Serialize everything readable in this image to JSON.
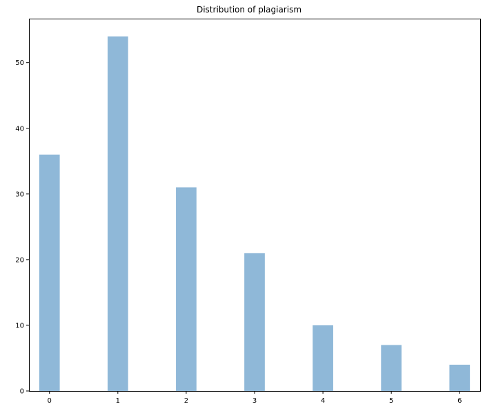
{
  "chart_data": {
    "type": "bar",
    "title": "Distribution of plagiarism",
    "xlabel": "",
    "ylabel": "",
    "x": [
      0,
      1,
      2,
      3,
      4,
      5,
      6
    ],
    "values": [
      36,
      54,
      31,
      21,
      10,
      7,
      4
    ],
    "xlim": [
      -0.3,
      6.3
    ],
    "ylim": [
      0,
      56.7
    ],
    "xticks": [
      0,
      1,
      2,
      3,
      4,
      5,
      6
    ],
    "yticks": [
      0,
      10,
      20,
      30,
      40,
      50
    ],
    "bar_width_data": 0.3,
    "bar_color": "#8fb8d8",
    "grid": false
  }
}
